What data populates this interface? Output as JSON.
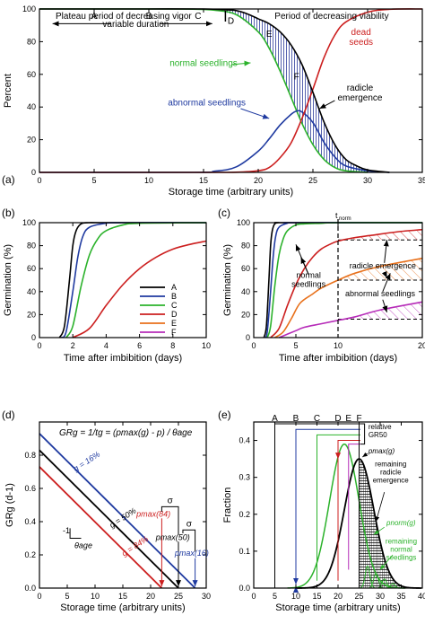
{
  "colors": {
    "black": "#000000",
    "blue": "#1f3aa0",
    "green": "#2bb22b",
    "red": "#cc1f1f",
    "orange": "#e8711c",
    "purple": "#b62bb8",
    "hatch_blue": "#2a3a9a"
  },
  "chart_data": [
    {
      "panel": "(a)",
      "type": "line",
      "xlabel": "Storage time (arbitrary units)",
      "ylabel": "Percent",
      "xlim": [
        0,
        35
      ],
      "ylim": [
        0,
        100
      ],
      "xticks": [
        0,
        5,
        10,
        15,
        20,
        25,
        30,
        35
      ],
      "yticks": [
        0,
        20,
        40,
        60,
        80,
        100
      ],
      "annotations": {
        "left_title": "Plateau period of decreasing vigor",
        "right_title": "Period of decreasing viability",
        "variable": "variable duration",
        "letters": [
          "A",
          "B",
          "C",
          "D",
          "E",
          "F"
        ],
        "normal": "normal seedlings",
        "abnormal": "abnormal seedlings",
        "dead": "dead\nseeds",
        "radicle": "radicle\nemergence"
      },
      "series": [
        {
          "name": "normal seedlings",
          "color": "#2bb22b",
          "x": [
            0,
            5,
            10,
            14,
            16,
            18,
            20,
            21,
            22,
            23,
            24,
            25,
            26,
            27,
            28,
            30
          ],
          "y": [
            100,
            100,
            100,
            99.9,
            99.3,
            96.5,
            86,
            76,
            62,
            46,
            30,
            17,
            8,
            3,
            1,
            0
          ]
        },
        {
          "name": "abnormal seedlings",
          "color": "#1f3aa0",
          "x": [
            0,
            14,
            16,
            18,
            20,
            21,
            22,
            23,
            23.5,
            24,
            25,
            26,
            27,
            28,
            30,
            32
          ],
          "y": [
            0,
            0,
            0.7,
            3.4,
            13,
            20.5,
            29,
            35.5,
            37.5,
            37,
            30.5,
            18.5,
            9.5,
            4,
            1,
            0
          ]
        },
        {
          "name": "dead seeds",
          "color": "#cc1f1f",
          "x": [
            0,
            15,
            18,
            20,
            21,
            22,
            23,
            24,
            25,
            26,
            27,
            28,
            30,
            32,
            35
          ],
          "y": [
            0,
            0,
            0.1,
            1,
            3,
            9,
            18,
            33,
            51,
            70,
            84,
            92,
            98,
            99.8,
            100
          ]
        },
        {
          "name": "radicle emergence",
          "color": "#000000",
          "x": [
            0,
            5,
            10,
            15,
            17,
            18,
            19,
            20,
            21,
            22,
            23,
            24,
            25,
            26,
            27,
            28,
            29,
            30,
            32
          ],
          "y": [
            100,
            100,
            100,
            100,
            99.5,
            99,
            97,
            94,
            91,
            86,
            78,
            66,
            49,
            31,
            17,
            8,
            4,
            1.5,
            0
          ]
        }
      ]
    },
    {
      "panel": "(b)",
      "type": "line",
      "xlabel": "Time after imbibition (days)",
      "ylabel": "Germination (%)",
      "xlim": [
        0,
        10
      ],
      "ylim": [
        0,
        100
      ],
      "xticks": [
        0,
        2,
        4,
        6,
        8,
        10
      ],
      "yticks": [
        0,
        20,
        40,
        60,
        80,
        100
      ],
      "legend": [
        "A",
        "B",
        "C",
        "D",
        "E",
        "F"
      ],
      "series": [
        {
          "name": "A",
          "color": "#000000",
          "x": [
            1.2,
            1.5,
            1.8,
            2.0,
            2.2,
            2.5,
            3,
            4,
            10
          ],
          "y": [
            0,
            10,
            50,
            80,
            93,
            99,
            100,
            100,
            100
          ]
        },
        {
          "name": "B",
          "color": "#1f3aa0",
          "x": [
            1.3,
            1.6,
            2.0,
            2.3,
            2.6,
            3,
            4,
            5,
            10
          ],
          "y": [
            0,
            5,
            40,
            70,
            88,
            96,
            99.5,
            100,
            100
          ]
        },
        {
          "name": "C",
          "color": "#2bb22b",
          "x": [
            1.6,
            2,
            2.5,
            3,
            3.5,
            4,
            5,
            6,
            10
          ],
          "y": [
            0,
            10,
            45,
            72,
            86,
            93,
            98,
            99.5,
            100
          ]
        },
        {
          "name": "D",
          "color": "#cc1f1f",
          "x": [
            2,
            3,
            4,
            5,
            6,
            7,
            8,
            9,
            10
          ],
          "y": [
            0,
            8,
            28,
            46,
            60,
            70,
            77,
            81,
            84
          ]
        }
      ]
    },
    {
      "panel": "(c)",
      "type": "line",
      "xlabel": "Time after imbibition (days)",
      "ylabel": "Germination (%)",
      "xlim": [
        0,
        20
      ],
      "ylim": [
        0,
        100
      ],
      "xticks": [
        0,
        5,
        10,
        20
      ],
      "yticks": [
        0,
        20,
        40,
        60,
        80,
        100
      ],
      "tnorm": 10,
      "annotations": {
        "tnorm": "t",
        "tnorm_sub": "norm",
        "normal": "normal\nseedlings",
        "radicle": "radicle emergence",
        "abnormal": "abnormal seedlings"
      },
      "series": [
        {
          "name": "A",
          "color": "#000000",
          "x": [
            1.2,
            1.5,
            1.8,
            2.0,
            2.2,
            2.5,
            3,
            4,
            20
          ],
          "y": [
            0,
            10,
            50,
            80,
            93,
            99,
            100,
            100,
            100
          ]
        },
        {
          "name": "B",
          "color": "#1f3aa0",
          "x": [
            1.3,
            1.6,
            2,
            2.3,
            2.6,
            3,
            4,
            5,
            20
          ],
          "y": [
            0,
            5,
            40,
            70,
            88,
            96,
            99.5,
            100,
            100
          ]
        },
        {
          "name": "C",
          "color": "#2bb22b",
          "x": [
            1.6,
            2,
            2.5,
            3,
            3.5,
            4,
            5,
            6,
            8,
            10,
            20
          ],
          "y": [
            0,
            10,
            45,
            72,
            86,
            93,
            98,
            99,
            99.5,
            100,
            100
          ]
        },
        {
          "name": "D",
          "color": "#cc1f1f",
          "x": [
            2,
            3,
            4,
            5,
            6,
            7,
            8,
            9,
            10,
            12,
            14,
            17,
            20
          ],
          "y": [
            0,
            8,
            28,
            46,
            60,
            70,
            77,
            81,
            84,
            87,
            89,
            92,
            94
          ]
        },
        {
          "name": "E",
          "color": "#e8711c",
          "x": [
            2.5,
            3.5,
            4.5,
            5.5,
            7,
            8,
            10,
            12,
            15,
            20
          ],
          "y": [
            0,
            5,
            17,
            30,
            38,
            43,
            50,
            56,
            62,
            69
          ]
        },
        {
          "name": "F",
          "color": "#b62bb8",
          "x": [
            3,
            4,
            5,
            6,
            8,
            10,
            12,
            15,
            20
          ],
          "y": [
            0,
            3,
            6,
            9,
            12,
            15,
            18,
            24,
            31
          ]
        }
      ],
      "reference_lines": [
        85,
        50,
        16
      ]
    },
    {
      "panel": "(d)",
      "type": "line",
      "xlabel": "Storage time (arbitrary units)",
      "ylabel": "GR_g (d-1)",
      "xlim": [
        0,
        30
      ],
      "ylim": [
        0,
        1.0
      ],
      "xticks": [
        0,
        5,
        10,
        15,
        20,
        25,
        30
      ],
      "yticks": [
        0,
        0.2,
        0.4,
        0.6,
        0.8
      ],
      "equation": "GRg = 1/tg = (pmax(g) - p) / θage",
      "series": [
        {
          "name": "g = 16%",
          "color": "#1f3aa0",
          "x": [
            0,
            28
          ],
          "y": [
            0.93,
            0
          ]
        },
        {
          "name": "g = 50%",
          "color": "#000000",
          "x": [
            0,
            25
          ],
          "y": [
            0.83,
            0
          ]
        },
        {
          "name": "g = 84%",
          "color": "#cc1f1f",
          "x": [
            0,
            22
          ],
          "y": [
            0.73,
            0
          ]
        }
      ],
      "labels": {
        "g16": "g = 16%",
        "g50": "g = 50%",
        "g84": "g = 84%",
        "pmax84": "pmax(84)",
        "pmax50": "pmax(50)",
        "pmax16": "pmax(16)",
        "sigma": "σ",
        "minus1": "-1",
        "theta": "θage"
      }
    },
    {
      "panel": "(e)",
      "type": "line",
      "xlabel": "Storage time (arbitrary units)",
      "ylabel": "Fraction",
      "xlim": [
        0,
        40
      ],
      "ylim": [
        0,
        0.45
      ],
      "xticks": [
        0,
        5,
        10,
        15,
        20,
        25,
        30,
        35,
        40
      ],
      "yticks": [
        0,
        0.1,
        0.2,
        0.3,
        0.4
      ],
      "letters": [
        "A",
        "B",
        "C",
        "D",
        "E",
        "F"
      ],
      "letter_x": [
        5,
        10,
        15,
        20,
        22.5,
        25
      ],
      "series": [
        {
          "name": "pmax(g)",
          "color": "#000000",
          "mean": 25,
          "sd": 3.5
        },
        {
          "name": "pnorm(g)",
          "color": "#2bb22b",
          "mean": 21.5,
          "sd": 3.5
        },
        {
          "name": "relative GR50",
          "color": "#000000"
        }
      ],
      "labels": {
        "relative": "relative\nGR50",
        "pmaxg": "pmax(g)",
        "remaining_radicle": "remaining\nradicle\nemergence",
        "pnorm": "pnorm(g)",
        "remaining_normal": "remaining\nnormal\nseedlings"
      }
    }
  ],
  "panel_labels": [
    "(a)",
    "(b)",
    "(c)",
    "(d)",
    "(e)"
  ]
}
